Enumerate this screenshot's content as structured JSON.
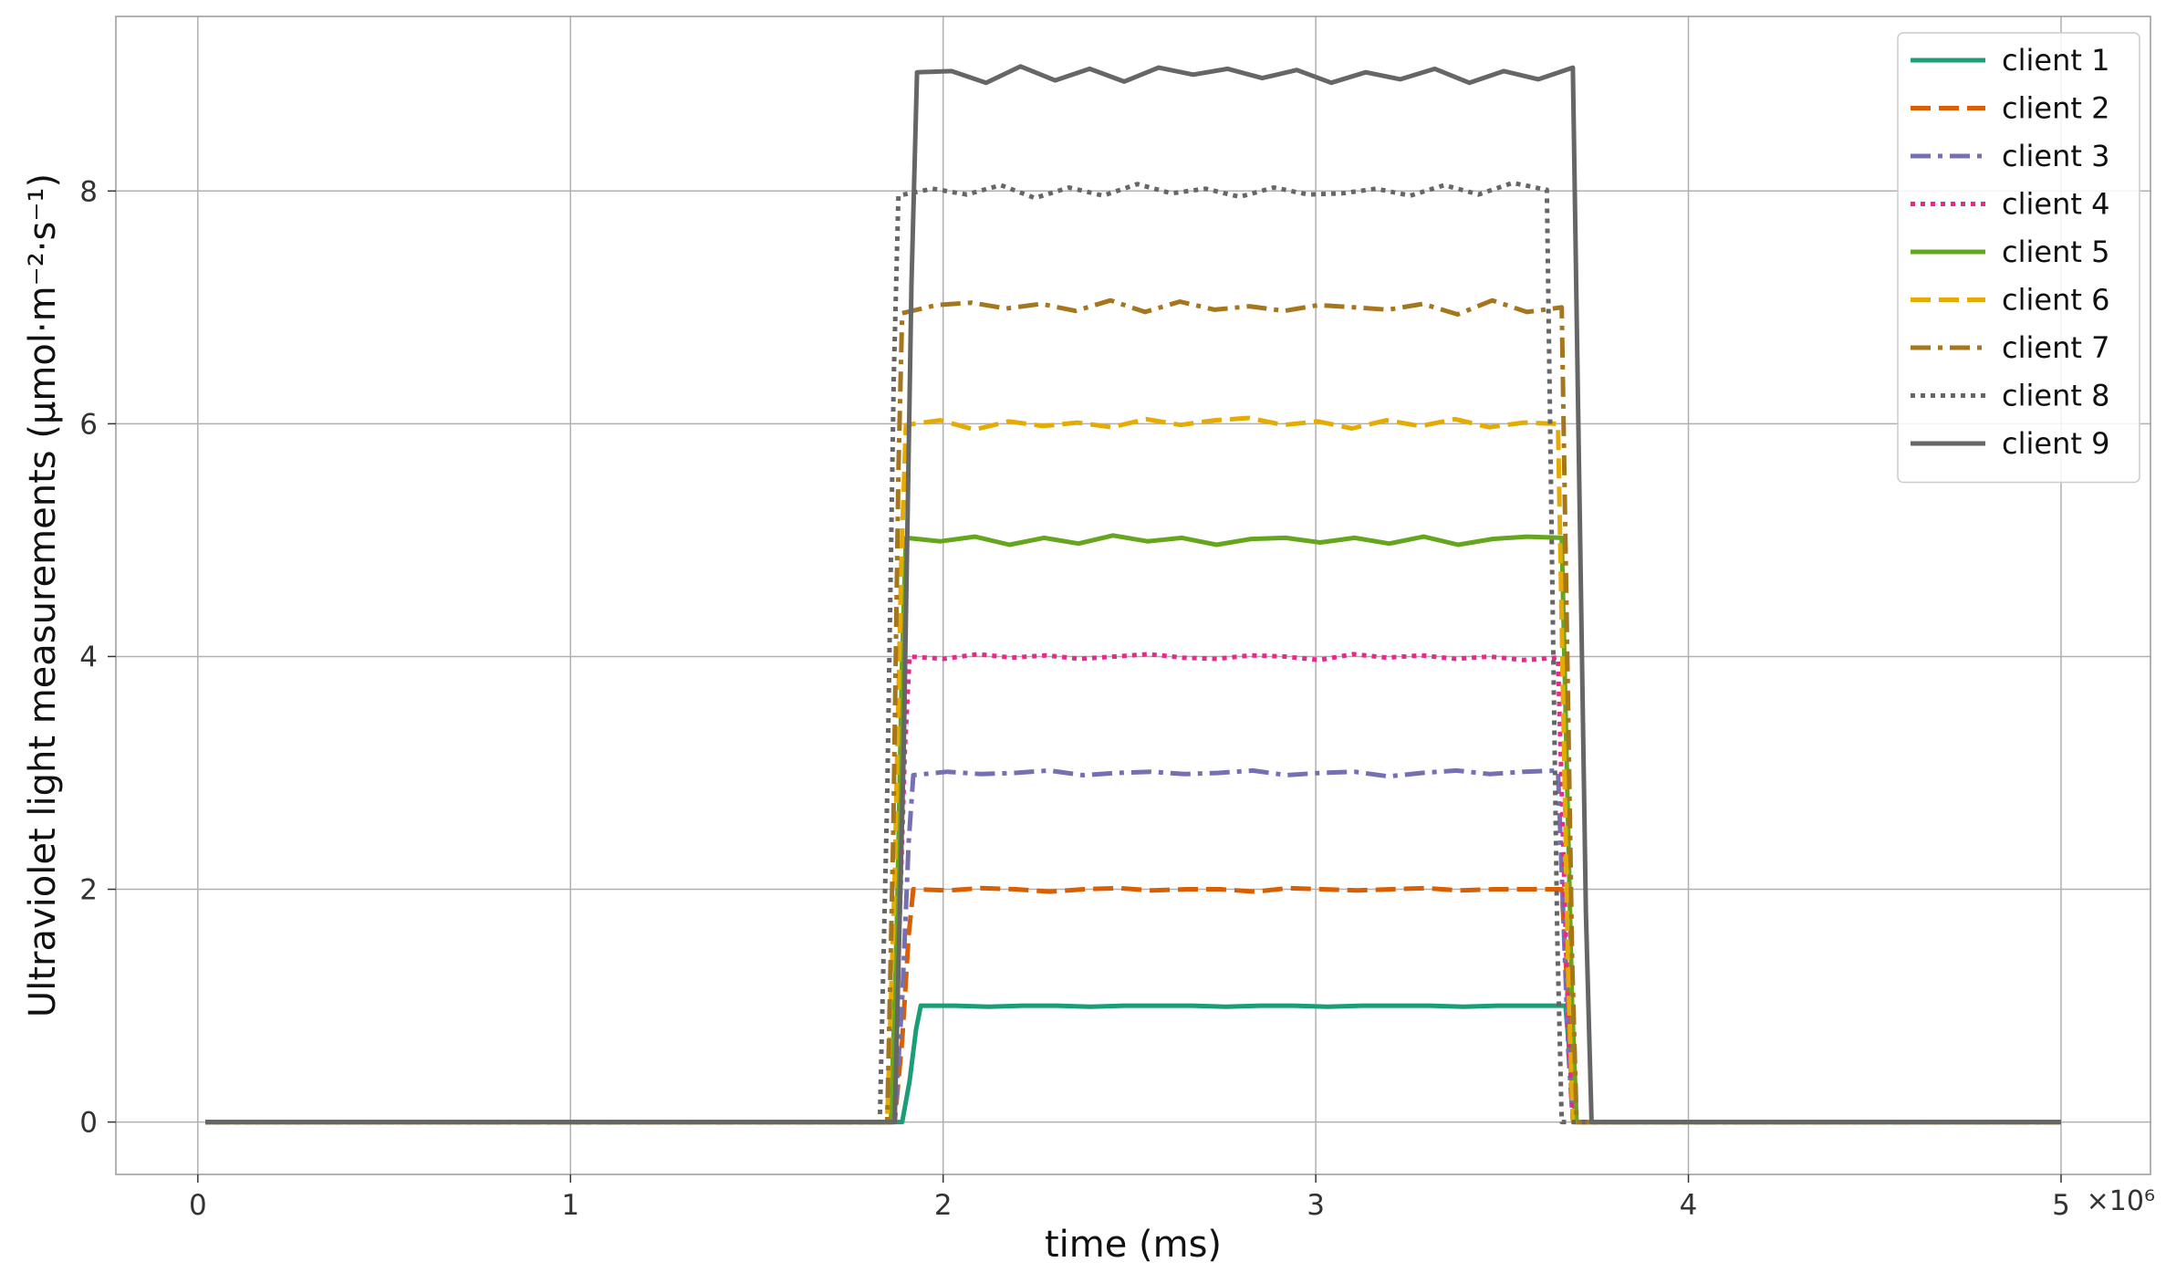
{
  "chart_data": {
    "type": "line",
    "xlabel": "time (ms)",
    "ylabel": "Ultraviolet light measurements (μmol·m⁻²·s⁻¹)",
    "x_offset_label": "×10⁶",
    "x_scale": 1000000,
    "xlim": [
      -0.22,
      5.24
    ],
    "ylim": [
      -0.45,
      9.5
    ],
    "xticks": [
      0,
      1,
      2,
      3,
      4,
      5
    ],
    "yticks": [
      0,
      2,
      4,
      6,
      8
    ],
    "grid": true,
    "legend_position": "top-right",
    "x_end": 5.0,
    "series": [
      {
        "name": "client 1",
        "color": "#1b9e77",
        "dash": "solid",
        "level": 1,
        "rise": [
          1.89,
          1.94
        ],
        "fall": [
          3.67,
          3.7
        ],
        "start": 0.02,
        "plateau": [
          1.0,
          1.0,
          0.99,
          1.0,
          1.0,
          0.99,
          1.0,
          1.0,
          1.0,
          0.99,
          1.0,
          1.0,
          0.99,
          1.0,
          1.0,
          1.0,
          0.99,
          1.0,
          1.0,
          1.0
        ]
      },
      {
        "name": "client 2",
        "color": "#d95f02",
        "dash": "dashed",
        "level": 2,
        "rise": [
          1.87,
          1.92
        ],
        "fall": [
          3.66,
          3.7
        ],
        "start": 0.02,
        "plateau": [
          2.0,
          1.99,
          2.01,
          2.0,
          1.98,
          2.0,
          2.01,
          1.99,
          2.0,
          2.0,
          1.98,
          2.01,
          2.0,
          1.99,
          2.0,
          2.01,
          1.99,
          2.0,
          2.0,
          2.0
        ]
      },
      {
        "name": "client 3",
        "color": "#7570b3",
        "dash": "dashdot",
        "level": 3,
        "rise": [
          1.87,
          1.92
        ],
        "fall": [
          3.65,
          3.69
        ],
        "start": 0.02,
        "plateau": [
          2.98,
          3.01,
          2.99,
          3.0,
          3.02,
          2.98,
          3.0,
          3.01,
          2.99,
          3.0,
          3.02,
          2.98,
          3.0,
          3.01,
          2.97,
          3.0,
          3.02,
          2.99,
          3.01,
          3.02
        ]
      },
      {
        "name": "client 4",
        "color": "#e7298a",
        "dash": "dotted",
        "level": 4,
        "rise": [
          1.86,
          1.91
        ],
        "fall": [
          3.65,
          3.69
        ],
        "start": 0.02,
        "plateau": [
          4.0,
          3.98,
          4.02,
          3.99,
          4.01,
          3.98,
          4.0,
          4.02,
          3.99,
          3.98,
          4.01,
          4.0,
          3.97,
          4.02,
          3.99,
          4.01,
          3.98,
          4.0,
          3.97,
          3.99
        ]
      },
      {
        "name": "client 5",
        "color": "#66a61e",
        "dash": "solid",
        "level": 5,
        "rise": [
          1.86,
          1.9
        ],
        "fall": [
          3.66,
          3.7
        ],
        "start": 0.02,
        "plateau": [
          5.02,
          4.99,
          5.03,
          4.96,
          5.02,
          4.97,
          5.04,
          4.99,
          5.02,
          4.96,
          5.01,
          5.02,
          4.98,
          5.02,
          4.97,
          5.03,
          4.96,
          5.01,
          5.03,
          5.02
        ]
      },
      {
        "name": "client 6",
        "color": "#e6ab02",
        "dash": "dashed",
        "level": 6,
        "rise": [
          1.85,
          1.9
        ],
        "fall": [
          3.65,
          3.69
        ],
        "start": 0.05,
        "plateau": [
          5.99,
          6.03,
          5.95,
          6.02,
          5.98,
          6.01,
          5.97,
          6.04,
          5.99,
          6.03,
          6.05,
          5.99,
          6.02,
          5.96,
          6.03,
          5.98,
          6.04,
          5.97,
          6.01,
          6.0
        ]
      },
      {
        "name": "client 7",
        "color": "#a6761d",
        "dash": "dashdot",
        "level": 7,
        "rise": [
          1.85,
          1.89
        ],
        "fall": [
          3.66,
          3.7
        ],
        "start": 0.02,
        "plateau": [
          6.95,
          7.02,
          7.04,
          6.99,
          7.03,
          6.97,
          7.06,
          6.96,
          7.05,
          6.98,
          7.01,
          6.97,
          7.02,
          7.0,
          6.98,
          7.03,
          6.94,
          7.06,
          6.96,
          7.0
        ]
      },
      {
        "name": "client 8",
        "color": "#666666",
        "dash": "dotted",
        "level": 8,
        "rise": [
          1.83,
          1.88
        ],
        "fall": [
          3.62,
          3.66
        ],
        "start": 0.02,
        "plateau": [
          7.96,
          8.02,
          7.97,
          8.05,
          7.94,
          8.03,
          7.96,
          8.06,
          7.98,
          8.02,
          7.95,
          8.03,
          7.97,
          7.98,
          8.02,
          7.96,
          8.05,
          7.97,
          8.07,
          8.01
        ]
      },
      {
        "name": "client 9",
        "color": "#666666",
        "dash": "solid",
        "level": 9,
        "rise": [
          1.87,
          1.93
        ],
        "fall": [
          3.69,
          3.74
        ],
        "start": 0.02,
        "plateau": [
          9.02,
          9.03,
          8.93,
          9.07,
          8.95,
          9.05,
          8.94,
          9.06,
          9.0,
          9.05,
          8.97,
          9.04,
          8.93,
          9.02,
          8.96,
          9.05,
          8.93,
          9.03,
          8.96,
          9.06
        ]
      }
    ]
  }
}
